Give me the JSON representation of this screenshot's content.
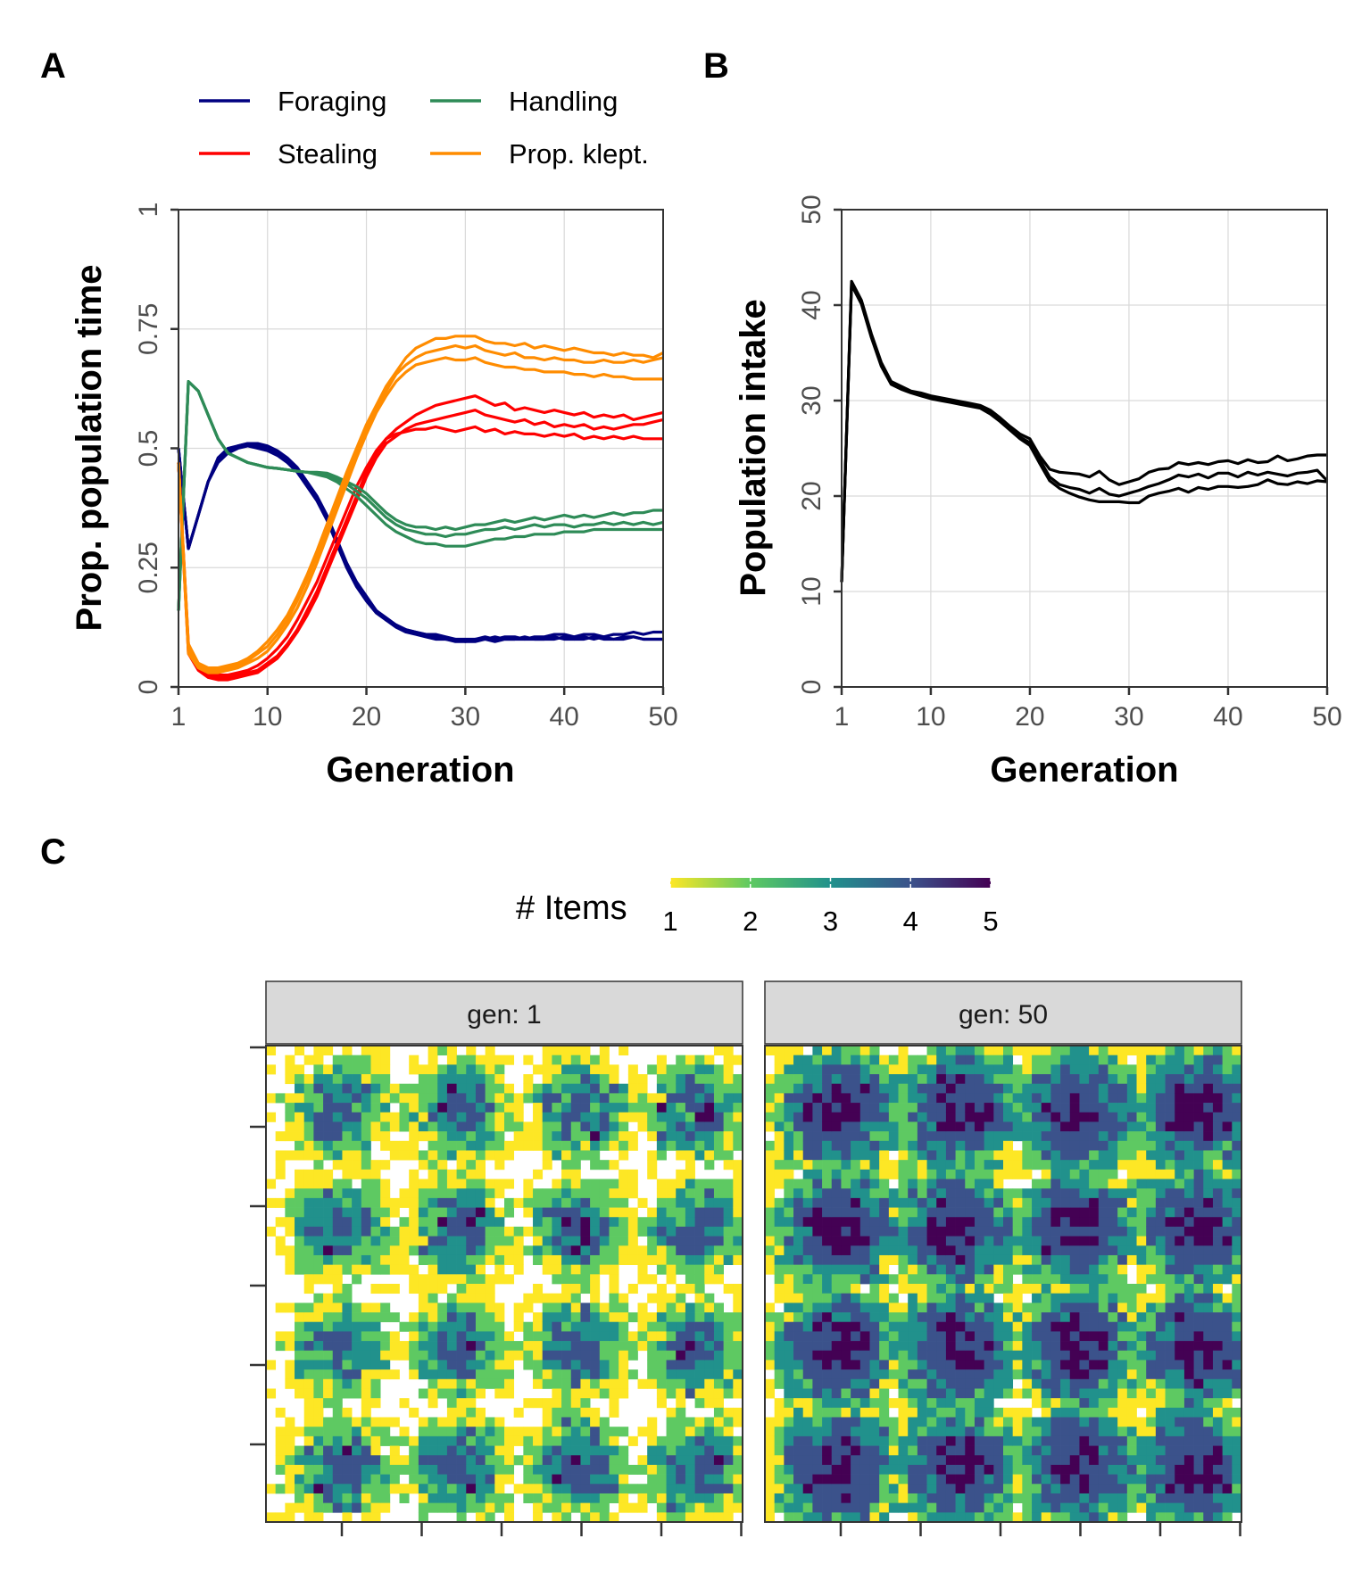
{
  "panels": {
    "a": "A",
    "b": "B",
    "c": "C"
  },
  "chart_data": [
    {
      "type": "line",
      "panel": "A",
      "xlabel": "Generation",
      "ylabel": "Prop. population time",
      "xlim": [
        1,
        50
      ],
      "ylim": [
        0,
        1
      ],
      "xticks": [
        1,
        10,
        20,
        30,
        40,
        50
      ],
      "xtick_labels": [
        "1",
        "10",
        "20",
        "30",
        "40",
        "50"
      ],
      "yticks": [
        0,
        0.25,
        0.5,
        0.75,
        1
      ],
      "ytick_labels": [
        "0",
        "0.25",
        "0.5",
        "0.75",
        "1"
      ],
      "grid": true,
      "legend_position": "top",
      "replicates": 3,
      "x": [
        1,
        2,
        3,
        4,
        5,
        6,
        7,
        8,
        9,
        10,
        11,
        12,
        13,
        14,
        15,
        16,
        17,
        18,
        19,
        20,
        21,
        22,
        23,
        24,
        25,
        26,
        27,
        28,
        29,
        30,
        31,
        32,
        33,
        34,
        35,
        36,
        37,
        38,
        39,
        40,
        41,
        42,
        43,
        44,
        45,
        46,
        47,
        48,
        49,
        50
      ],
      "series": [
        {
          "name": "Foraging",
          "color": "#000080",
          "runs": [
            [
              0.5,
              0.29,
              0.36,
              0.43,
              0.48,
              0.5,
              0.505,
              0.51,
              0.51,
              0.505,
              0.495,
              0.48,
              0.46,
              0.43,
              0.4,
              0.36,
              0.31,
              0.26,
              0.22,
              0.19,
              0.16,
              0.145,
              0.13,
              0.12,
              0.115,
              0.11,
              0.11,
              0.105,
              0.1,
              0.1,
              0.1,
              0.105,
              0.1,
              0.105,
              0.105,
              0.1,
              0.105,
              0.105,
              0.11,
              0.11,
              0.105,
              0.11,
              0.11,
              0.105,
              0.11,
              0.11,
              0.115,
              0.11,
              0.115,
              0.115
            ],
            [
              0.5,
              0.29,
              0.36,
              0.43,
              0.47,
              0.49,
              0.5,
              0.505,
              0.5,
              0.495,
              0.485,
              0.47,
              0.45,
              0.42,
              0.39,
              0.35,
              0.3,
              0.25,
              0.21,
              0.18,
              0.155,
              0.14,
              0.125,
              0.115,
              0.11,
              0.105,
              0.1,
              0.1,
              0.095,
              0.095,
              0.095,
              0.1,
              0.095,
              0.1,
              0.1,
              0.1,
              0.1,
              0.1,
              0.1,
              0.105,
              0.1,
              0.105,
              0.1,
              0.105,
              0.1,
              0.105,
              0.105,
              0.1,
              0.1,
              0.1
            ],
            [
              0.5,
              0.29,
              0.36,
              0.43,
              0.475,
              0.495,
              0.505,
              0.51,
              0.505,
              0.5,
              0.49,
              0.475,
              0.455,
              0.425,
              0.395,
              0.355,
              0.305,
              0.255,
              0.215,
              0.185,
              0.16,
              0.14,
              0.13,
              0.12,
              0.115,
              0.11,
              0.105,
              0.1,
              0.1,
              0.095,
              0.1,
              0.1,
              0.105,
              0.1,
              0.1,
              0.105,
              0.1,
              0.1,
              0.105,
              0.1,
              0.1,
              0.1,
              0.105,
              0.1,
              0.1,
              0.1,
              0.105,
              0.1,
              0.1,
              0.1
            ]
          ]
        },
        {
          "name": "Stealing",
          "color": "#ff0000",
          "runs": [
            [
              0.47,
              0.08,
              0.04,
              0.025,
              0.02,
              0.02,
              0.025,
              0.03,
              0.035,
              0.05,
              0.065,
              0.09,
              0.12,
              0.16,
              0.2,
              0.25,
              0.3,
              0.35,
              0.4,
              0.45,
              0.49,
              0.52,
              0.54,
              0.555,
              0.57,
              0.58,
              0.59,
              0.595,
              0.6,
              0.605,
              0.61,
              0.6,
              0.59,
              0.595,
              0.58,
              0.585,
              0.58,
              0.575,
              0.58,
              0.575,
              0.57,
              0.575,
              0.565,
              0.57,
              0.565,
              0.57,
              0.56,
              0.565,
              0.57,
              0.575
            ],
            [
              0.47,
              0.07,
              0.035,
              0.02,
              0.015,
              0.015,
              0.02,
              0.025,
              0.03,
              0.045,
              0.06,
              0.085,
              0.115,
              0.15,
              0.19,
              0.24,
              0.29,
              0.34,
              0.39,
              0.44,
              0.48,
              0.51,
              0.525,
              0.54,
              0.55,
              0.555,
              0.56,
              0.565,
              0.57,
              0.575,
              0.58,
              0.57,
              0.565,
              0.56,
              0.555,
              0.56,
              0.55,
              0.555,
              0.545,
              0.55,
              0.545,
              0.55,
              0.54,
              0.545,
              0.54,
              0.545,
              0.55,
              0.55,
              0.555,
              0.56
            ],
            [
              0.47,
              0.09,
              0.045,
              0.03,
              0.025,
              0.025,
              0.03,
              0.035,
              0.045,
              0.06,
              0.08,
              0.105,
              0.14,
              0.18,
              0.22,
              0.27,
              0.32,
              0.37,
              0.42,
              0.46,
              0.495,
              0.52,
              0.53,
              0.535,
              0.54,
              0.54,
              0.545,
              0.54,
              0.535,
              0.54,
              0.545,
              0.535,
              0.54,
              0.53,
              0.535,
              0.53,
              0.53,
              0.525,
              0.53,
              0.525,
              0.53,
              0.52,
              0.525,
              0.52,
              0.525,
              0.52,
              0.525,
              0.52,
              0.52,
              0.52
            ]
          ]
        },
        {
          "name": "Handling",
          "color": "#2e8b57",
          "runs": [
            [
              0.16,
              0.64,
              0.62,
              0.57,
              0.52,
              0.49,
              0.48,
              0.47,
              0.465,
              0.46,
              0.458,
              0.455,
              0.452,
              0.45,
              0.45,
              0.448,
              0.44,
              0.43,
              0.42,
              0.405,
              0.385,
              0.365,
              0.35,
              0.34,
              0.335,
              0.335,
              0.33,
              0.335,
              0.33,
              0.335,
              0.34,
              0.34,
              0.345,
              0.35,
              0.345,
              0.35,
              0.355,
              0.35,
              0.355,
              0.36,
              0.355,
              0.36,
              0.355,
              0.36,
              0.365,
              0.36,
              0.365,
              0.365,
              0.37,
              0.37
            ],
            [
              0.16,
              0.64,
              0.62,
              0.57,
              0.52,
              0.49,
              0.48,
              0.47,
              0.465,
              0.46,
              0.458,
              0.455,
              0.452,
              0.45,
              0.448,
              0.445,
              0.435,
              0.425,
              0.41,
              0.395,
              0.375,
              0.355,
              0.34,
              0.33,
              0.325,
              0.32,
              0.32,
              0.315,
              0.32,
              0.32,
              0.325,
              0.33,
              0.33,
              0.335,
              0.33,
              0.335,
              0.34,
              0.335,
              0.34,
              0.34,
              0.335,
              0.34,
              0.34,
              0.345,
              0.34,
              0.345,
              0.34,
              0.345,
              0.34,
              0.345
            ],
            [
              0.16,
              0.64,
              0.62,
              0.57,
              0.52,
              0.49,
              0.48,
              0.47,
              0.465,
              0.46,
              0.458,
              0.455,
              0.452,
              0.45,
              0.445,
              0.44,
              0.43,
              0.415,
              0.4,
              0.38,
              0.36,
              0.34,
              0.325,
              0.315,
              0.305,
              0.3,
              0.3,
              0.295,
              0.295,
              0.295,
              0.3,
              0.305,
              0.31,
              0.31,
              0.315,
              0.315,
              0.32,
              0.32,
              0.32,
              0.325,
              0.325,
              0.325,
              0.33,
              0.33,
              0.33,
              0.33,
              0.33,
              0.33,
              0.33,
              0.33
            ]
          ]
        },
        {
          "name": "Prop. klept.",
          "color": "#ff8c00",
          "runs": [
            [
              0.47,
              0.09,
              0.05,
              0.04,
              0.04,
              0.045,
              0.05,
              0.06,
              0.075,
              0.095,
              0.12,
              0.15,
              0.19,
              0.235,
              0.285,
              0.34,
              0.395,
              0.45,
              0.5,
              0.55,
              0.59,
              0.63,
              0.66,
              0.69,
              0.71,
              0.72,
              0.73,
              0.73,
              0.735,
              0.735,
              0.735,
              0.725,
              0.72,
              0.72,
              0.715,
              0.72,
              0.71,
              0.715,
              0.71,
              0.705,
              0.71,
              0.705,
              0.7,
              0.7,
              0.695,
              0.7,
              0.695,
              0.695,
              0.69,
              0.7
            ],
            [
              0.47,
              0.08,
              0.045,
              0.035,
              0.035,
              0.04,
              0.045,
              0.055,
              0.07,
              0.085,
              0.11,
              0.14,
              0.18,
              0.225,
              0.275,
              0.33,
              0.385,
              0.44,
              0.49,
              0.54,
              0.58,
              0.62,
              0.655,
              0.675,
              0.69,
              0.7,
              0.705,
              0.71,
              0.715,
              0.71,
              0.715,
              0.705,
              0.7,
              0.695,
              0.7,
              0.69,
              0.69,
              0.685,
              0.69,
              0.685,
              0.685,
              0.68,
              0.68,
              0.685,
              0.68,
              0.68,
              0.685,
              0.68,
              0.685,
              0.69
            ],
            [
              0.47,
              0.07,
              0.04,
              0.03,
              0.03,
              0.035,
              0.04,
              0.05,
              0.06,
              0.075,
              0.1,
              0.13,
              0.165,
              0.21,
              0.26,
              0.315,
              0.37,
              0.425,
              0.48,
              0.53,
              0.575,
              0.61,
              0.64,
              0.66,
              0.675,
              0.68,
              0.685,
              0.69,
              0.685,
              0.685,
              0.69,
              0.68,
              0.675,
              0.67,
              0.67,
              0.665,
              0.665,
              0.66,
              0.66,
              0.66,
              0.655,
              0.655,
              0.65,
              0.655,
              0.65,
              0.65,
              0.645,
              0.645,
              0.645,
              0.645
            ]
          ]
        }
      ]
    },
    {
      "type": "line",
      "panel": "B",
      "xlabel": "Generation",
      "ylabel": "Population intake",
      "xlim": [
        1,
        50
      ],
      "ylim": [
        0,
        50
      ],
      "xticks": [
        1,
        10,
        20,
        30,
        40,
        50
      ],
      "xtick_labels": [
        "1",
        "10",
        "20",
        "30",
        "40",
        "50"
      ],
      "yticks": [
        0,
        10,
        20,
        30,
        40,
        50
      ],
      "ytick_labels": [
        "0",
        "10",
        "20",
        "30",
        "40",
        "50"
      ],
      "grid": true,
      "color": "#000000",
      "x": [
        1,
        2,
        3,
        4,
        5,
        6,
        7,
        8,
        9,
        10,
        11,
        12,
        13,
        14,
        15,
        16,
        17,
        18,
        19,
        20,
        21,
        22,
        23,
        24,
        25,
        26,
        27,
        28,
        29,
        30,
        31,
        32,
        33,
        34,
        35,
        36,
        37,
        38,
        39,
        40,
        41,
        42,
        43,
        44,
        45,
        46,
        47,
        48,
        49,
        50
      ],
      "runs": [
        [
          11,
          42.5,
          40.5,
          37,
          34,
          32,
          31.5,
          31,
          30.8,
          30.5,
          30.3,
          30.1,
          29.9,
          29.7,
          29.5,
          29,
          28.2,
          27.3,
          26.5,
          26,
          24.2,
          22.8,
          22.5,
          22.4,
          22.3,
          22.0,
          22.6,
          21.7,
          21.2,
          21.5,
          21.8,
          22.5,
          22.8,
          22.9,
          23.5,
          23.3,
          23.5,
          23.3,
          23.6,
          23.7,
          23.4,
          23.8,
          23.5,
          23.6,
          24.2,
          23.7,
          23.9,
          24.2,
          24.3,
          24.3
        ],
        [
          11,
          42.3,
          40.3,
          36.8,
          33.8,
          31.8,
          31.3,
          30.9,
          30.6,
          30.3,
          30.1,
          29.9,
          29.7,
          29.5,
          29.3,
          28.8,
          28.0,
          27.1,
          26.2,
          25.6,
          23.8,
          22.0,
          21.2,
          20.9,
          20.7,
          20.3,
          20.8,
          20.2,
          20.0,
          20.3,
          20.6,
          21.0,
          21.3,
          21.7,
          22.2,
          22.0,
          22.3,
          21.9,
          22.4,
          22.4,
          22.0,
          22.5,
          22.2,
          22.5,
          22.3,
          22.1,
          22.4,
          22.5,
          22.7,
          21.6
        ],
        [
          11,
          42.1,
          40.1,
          36.6,
          33.6,
          31.7,
          31.2,
          30.8,
          30.5,
          30.2,
          30.0,
          29.8,
          29.6,
          29.4,
          29.2,
          28.6,
          27.8,
          26.9,
          26.0,
          25.3,
          23.4,
          21.6,
          20.8,
          20.3,
          19.9,
          19.6,
          19.4,
          19.4,
          19.4,
          19.3,
          19.3,
          20.0,
          20.3,
          20.5,
          20.8,
          20.4,
          20.9,
          20.7,
          21.0,
          21.0,
          20.9,
          21.0,
          21.2,
          21.7,
          21.3,
          21.2,
          21.5,
          21.3,
          21.6,
          21.5
        ]
      ]
    },
    {
      "type": "heatmap",
      "panel": "C",
      "legend_title": "# Items",
      "legend_ticks": [
        "1",
        "2",
        "3",
        "4",
        "5"
      ],
      "color_scale": [
        "#fde725",
        "#5ec962",
        "#21918c",
        "#3b528b",
        "#440154"
      ],
      "axis_ticks_labels": "none",
      "grid_size": 50,
      "patches_per_side": 4,
      "facets": [
        {
          "label": "gen: 1"
        },
        {
          "label": "gen: 50"
        }
      ]
    }
  ]
}
